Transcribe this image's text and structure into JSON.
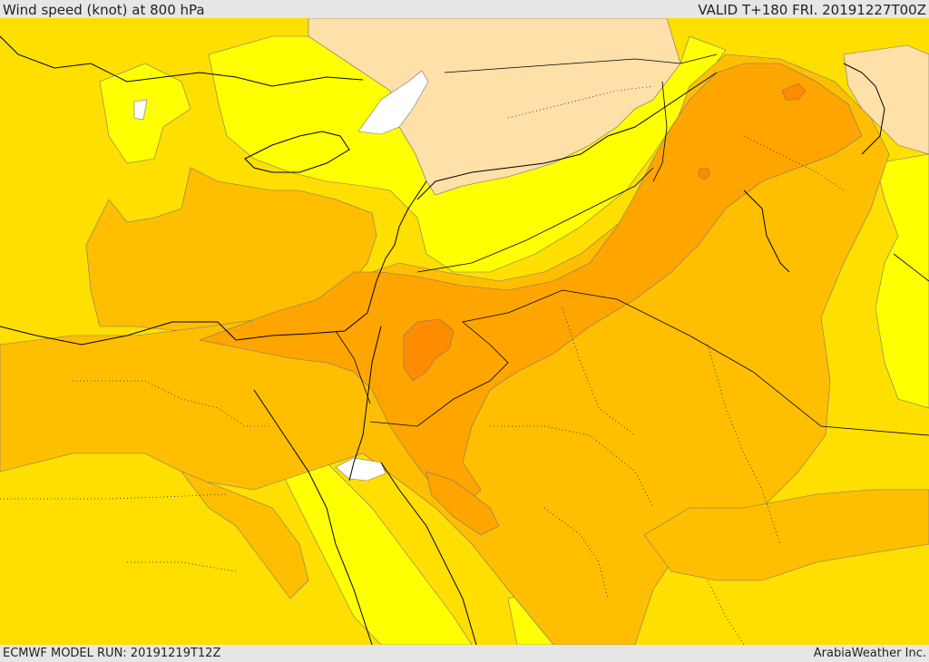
{
  "header": {
    "title": "Wind speed (knot) at 800 hPa",
    "valid": "VALID T+180 FRI. 20191227T00Z"
  },
  "footer": {
    "model_run": "ECMWF MODEL RUN: 20191219T12Z",
    "credit": "ArabiaWeather Inc."
  },
  "palette": {
    "very_low": "#ffffff",
    "low": "#ffe0a8",
    "moderate": "#ffff00",
    "elevated": "#ffdf00",
    "high": "#ffbf00",
    "higher": "#ffa500",
    "highest": "#ff8c00",
    "contour": "#555555",
    "border": "#000000"
  }
}
